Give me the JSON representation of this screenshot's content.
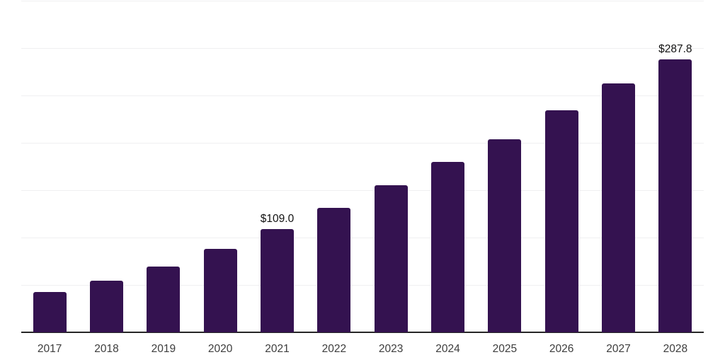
{
  "chart_data": {
    "type": "bar",
    "title": "",
    "xlabel": "",
    "ylabel": "",
    "categories": [
      "2017",
      "2018",
      "2019",
      "2020",
      "2021",
      "2022",
      "2023",
      "2024",
      "2025",
      "2026",
      "2027",
      "2028"
    ],
    "values": [
      42.8,
      54.5,
      69.4,
      88.1,
      109.0,
      131.3,
      154.9,
      179.9,
      204.0,
      234.3,
      262.5,
      287.8
    ],
    "data_labels": [
      null,
      null,
      null,
      null,
      "$109.0",
      null,
      null,
      null,
      null,
      null,
      null,
      "$287.8"
    ],
    "ylim": [
      0,
      350
    ],
    "gridline_step": 50,
    "grid": true,
    "legend": false,
    "colors": {
      "bar": "#341250",
      "axis_line": "#262626",
      "gridline": "#F0F0F1",
      "tick_label": "#3D3D3D",
      "data_label": "#111111",
      "background": "#FFFFFF"
    }
  }
}
